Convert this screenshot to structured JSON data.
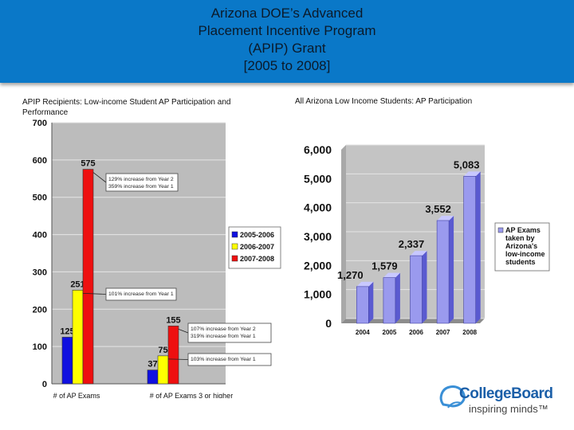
{
  "header": {
    "title_lines": [
      "Arizona DOE’s Advanced",
      "Placement Incentive Program",
      "(APIP) Grant",
      "[2005 to 2008]"
    ]
  },
  "left_chart_heading": "APIP Recipients: Low-income Student AP Participation and Performance",
  "right_chart_heading": "All Arizona Low Income Students: AP Participation",
  "colors": {
    "header": "#0a78c8",
    "blue": "#1010e0",
    "yellow": "#ffff00",
    "red": "#ee1010",
    "purple": "#9a9aee"
  },
  "chart_data": [
    {
      "type": "bar",
      "categories": [
        "# of AP Exams",
        "# of AP Exams 3 or higher"
      ],
      "series": [
        {
          "name": "2005-2006",
          "values": [
            125,
            37
          ]
        },
        {
          "name": "2006-2007",
          "values": [
            251,
            75
          ]
        },
        {
          "name": "2007-2008",
          "values": [
            575,
            155
          ]
        }
      ],
      "yticks": [
        "0",
        "100",
        "200",
        "300",
        "400",
        "500",
        "600",
        "700"
      ],
      "ylim": [
        0,
        700
      ],
      "legend_position": "right",
      "annotations": [
        {
          "lines": [
            "129% increase from Year 2",
            "359% increase from Year 1"
          ]
        },
        {
          "lines": [
            "101% increase from Year 1"
          ]
        },
        {
          "lines": [
            "107% increase from Year 2",
            "319% increase from Year 1"
          ]
        },
        {
          "lines": [
            "103% increase from Year 1"
          ]
        }
      ]
    },
    {
      "type": "bar",
      "categories": [
        "2004",
        "2005",
        "2006",
        "2007",
        "2008"
      ],
      "values": [
        1270,
        1579,
        2337,
        3552,
        5083
      ],
      "value_labels": [
        "1,270",
        "1,579",
        "2,337",
        "3,552",
        "5,083"
      ],
      "yticks": [
        "0",
        "1,000",
        "2,000",
        "3,000",
        "4,000",
        "5,000",
        "6,000"
      ],
      "ylim": [
        0,
        6000
      ],
      "legend": "AP Exams taken by Arizona's low-income students",
      "legend_position": "right"
    }
  ],
  "logo": {
    "name": "CollegeBoard",
    "tagline": "inspiring minds™"
  }
}
